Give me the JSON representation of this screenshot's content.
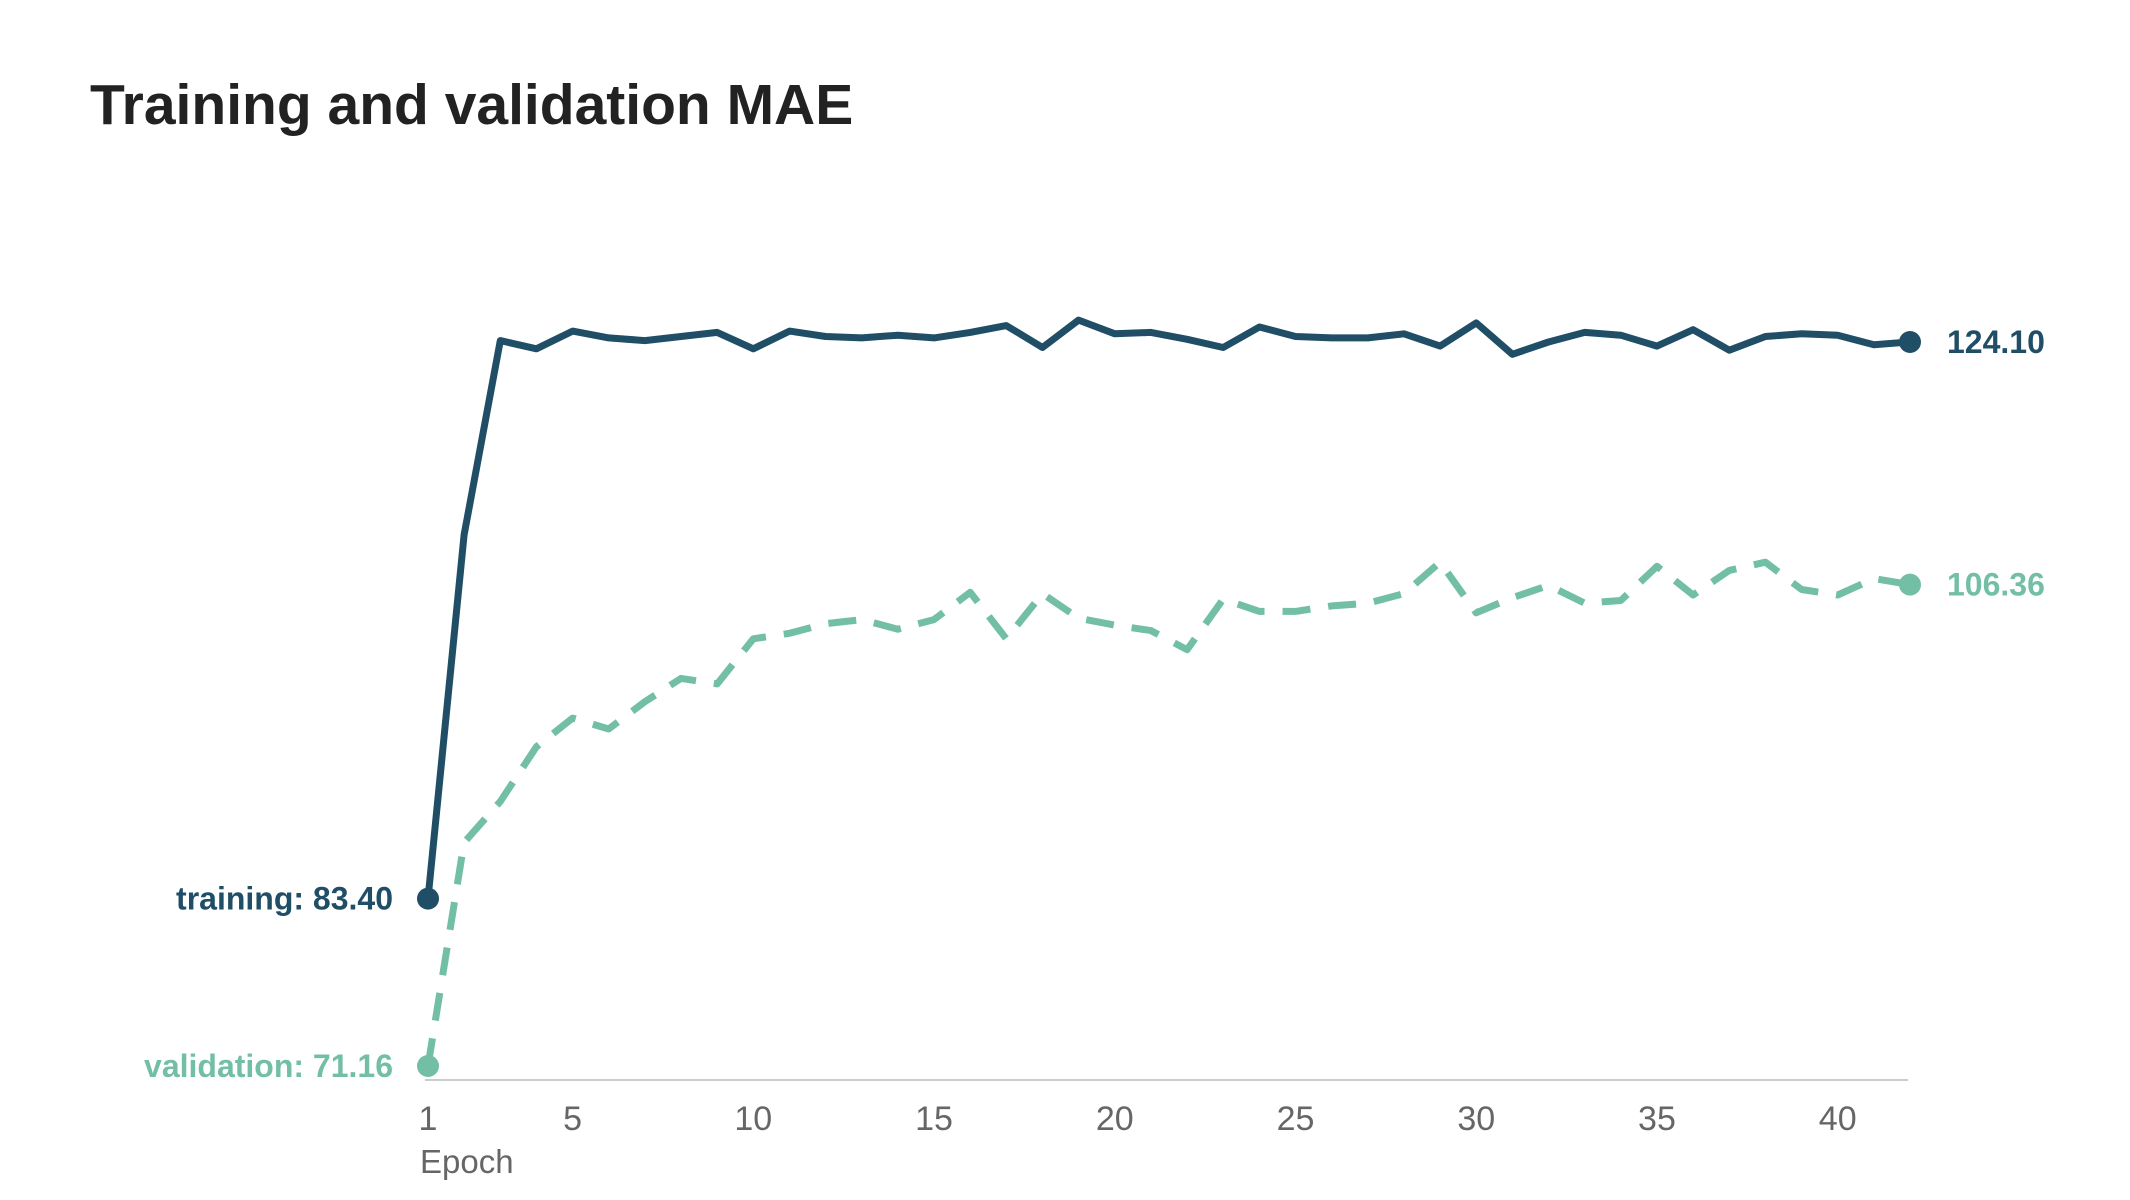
{
  "chart_data": {
    "type": "line",
    "title": "Training and validation MAE",
    "xlabel": "Epoch",
    "ylabel": "",
    "x_ticks": [
      1,
      5,
      10,
      15,
      20,
      25,
      30,
      35,
      40
    ],
    "xlim": [
      1,
      42
    ],
    "ylim": [
      70,
      130
    ],
    "grid": false,
    "legend": "direct labels at line ends",
    "x": [
      1,
      2,
      3,
      4,
      5,
      6,
      7,
      8,
      9,
      10,
      11,
      12,
      13,
      14,
      15,
      16,
      17,
      18,
      19,
      20,
      21,
      22,
      23,
      24,
      25,
      26,
      27,
      28,
      29,
      30,
      31,
      32,
      33,
      34,
      35,
      36,
      37,
      38,
      39,
      40,
      41,
      42
    ],
    "series": [
      {
        "name": "training",
        "color": "#1f4e66",
        "dash": "solid",
        "start_label": "training: 83.40",
        "end_label": "124.10",
        "values": [
          83.4,
          110.0,
          124.2,
          123.6,
          124.9,
          124.4,
          124.2,
          124.5,
          124.8,
          123.6,
          124.9,
          124.5,
          124.4,
          124.6,
          124.4,
          124.8,
          125.3,
          123.7,
          125.7,
          124.7,
          124.8,
          124.3,
          123.7,
          125.2,
          124.5,
          124.4,
          124.4,
          124.7,
          123.8,
          125.5,
          123.2,
          124.1,
          124.8,
          124.6,
          123.8,
          125.0,
          123.5,
          124.5,
          124.7,
          124.6,
          123.9,
          124.1
        ]
      },
      {
        "name": "validation",
        "color": "#72bfa6",
        "dash": "dashed",
        "start_label": "validation: 71.16",
        "end_label": "106.36",
        "values": [
          71.16,
          87.5,
          90.5,
          94.5,
          96.6,
          95.8,
          97.8,
          99.5,
          99.1,
          102.4,
          102.8,
          103.5,
          103.8,
          103.1,
          103.8,
          105.8,
          102.4,
          105.7,
          103.9,
          103.4,
          103.0,
          101.6,
          105.3,
          104.4,
          104.4,
          104.8,
          105.0,
          105.7,
          108.0,
          104.3,
          105.4,
          106.3,
          105.0,
          105.2,
          107.7,
          105.6,
          107.4,
          108.0,
          106.0,
          105.6,
          106.8,
          106.36
        ]
      }
    ]
  }
}
